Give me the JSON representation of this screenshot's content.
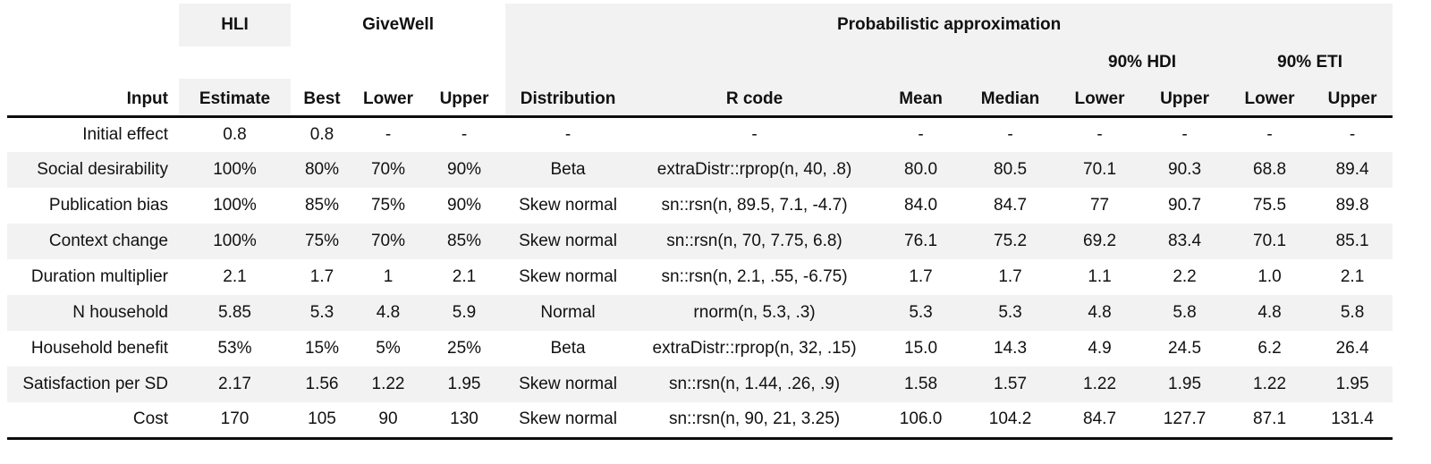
{
  "colors": {
    "header_band": "#f2f2f2",
    "row_stripe": "#f2f2f2",
    "rule": "#0d0d0d",
    "text": "#111111",
    "background": "#ffffff"
  },
  "table": {
    "group_headers": {
      "hli": "HLI",
      "givewell": "GiveWell",
      "probabilistic": "Probabilistic approximation",
      "hdi_90": "90% HDI",
      "eti_90": "90% ETI"
    },
    "column_headers": [
      "Input",
      "Estimate",
      "Best",
      "Lower",
      "Upper",
      "Distribution",
      "R code",
      "Mean",
      "Median",
      "Lower",
      "Upper",
      "Lower",
      "Upper"
    ],
    "rows": [
      [
        "Initial effect",
        "0.8",
        "0.8",
        "-",
        "-",
        "-",
        "-",
        "-",
        "-",
        "-",
        "-",
        "-",
        "-"
      ],
      [
        "Social desirability",
        "100%",
        "80%",
        "70%",
        "90%",
        "Beta",
        "extraDistr::rprop(n, 40, .8)",
        "80.0",
        "80.5",
        "70.1",
        "90.3",
        "68.8",
        "89.4"
      ],
      [
        "Publication bias",
        "100%",
        "85%",
        "75%",
        "90%",
        "Skew normal",
        "sn::rsn(n, 89.5, 7.1, -4.7)",
        "84.0",
        "84.7",
        "77",
        "90.7",
        "75.5",
        "89.8"
      ],
      [
        "Context change",
        "100%",
        "75%",
        "70%",
        "85%",
        "Skew normal",
        "sn::rsn(n, 70, 7.75, 6.8)",
        "76.1",
        "75.2",
        "69.2",
        "83.4",
        "70.1",
        "85.1"
      ],
      [
        "Duration multiplier",
        "2.1",
        "1.7",
        "1",
        "2.1",
        "Skew normal",
        "sn::rsn(n, 2.1, .55, -6.75)",
        "1.7",
        "1.7",
        "1.1",
        "2.2",
        "1.0",
        "2.1"
      ],
      [
        "N household",
        "5.85",
        "5.3",
        "4.8",
        "5.9",
        "Normal",
        "rnorm(n, 5.3, .3)",
        "5.3",
        "5.3",
        "4.8",
        "5.8",
        "4.8",
        "5.8"
      ],
      [
        "Household benefit",
        "53%",
        "15%",
        "5%",
        "25%",
        "Beta",
        "extraDistr::rprop(n, 32, .15)",
        "15.0",
        "14.3",
        "4.9",
        "24.5",
        "6.2",
        "26.4"
      ],
      [
        "Satisfaction per SD",
        "2.17",
        "1.56",
        "1.22",
        "1.95",
        "Skew normal",
        "sn::rsn(n, 1.44, .26, .9)",
        "1.58",
        "1.57",
        "1.22",
        "1.95",
        "1.22",
        "1.95"
      ],
      [
        "Cost",
        "170",
        "105",
        "90",
        "130",
        "Skew normal",
        "sn::rsn(n, 90, 21, 3.25)",
        "106.0",
        "104.2",
        "84.7",
        "127.7",
        "87.1",
        "131.4"
      ]
    ]
  }
}
